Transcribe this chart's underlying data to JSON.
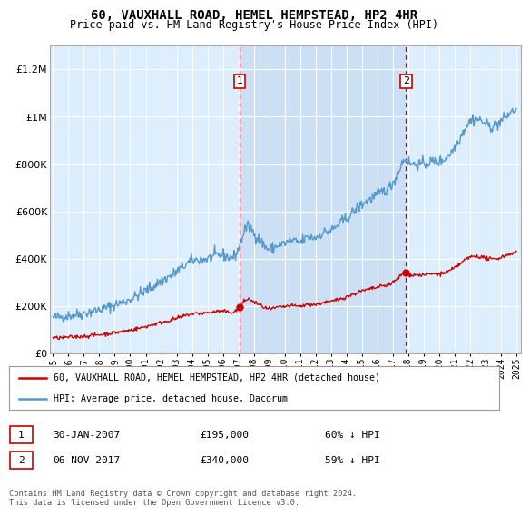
{
  "title": "60, VAUXHALL ROAD, HEMEL HEMPSTEAD, HP2 4HR",
  "subtitle": "Price paid vs. HM Land Registry's House Price Index (HPI)",
  "legend_label_red": "60, VAUXHALL ROAD, HEMEL HEMPSTEAD, HP2 4HR (detached house)",
  "legend_label_blue": "HPI: Average price, detached house, Dacorum",
  "footer": "Contains HM Land Registry data © Crown copyright and database right 2024.\nThis data is licensed under the Open Government Licence v3.0.",
  "plot_bg_color": "#ddeeff",
  "highlight_bg_color": "#cce0f5",
  "ylim": [
    0,
    1300000
  ],
  "hpi_color": "#5599cc",
  "price_color": "#cc0000",
  "grid_color": "#ffffff",
  "dashed_color": "#cc0000",
  "sale1_x": 2007.08,
  "sale1_y": 195000,
  "sale2_x": 2017.85,
  "sale2_y": 340000,
  "ann1_date": "30-JAN-2007",
  "ann1_price": "£195,000",
  "ann1_pct": "60% ↓ HPI",
  "ann2_date": "06-NOV-2017",
  "ann2_price": "£340,000",
  "ann2_pct": "59% ↓ HPI",
  "xlim_start": 1994.8,
  "xlim_end": 2025.3
}
